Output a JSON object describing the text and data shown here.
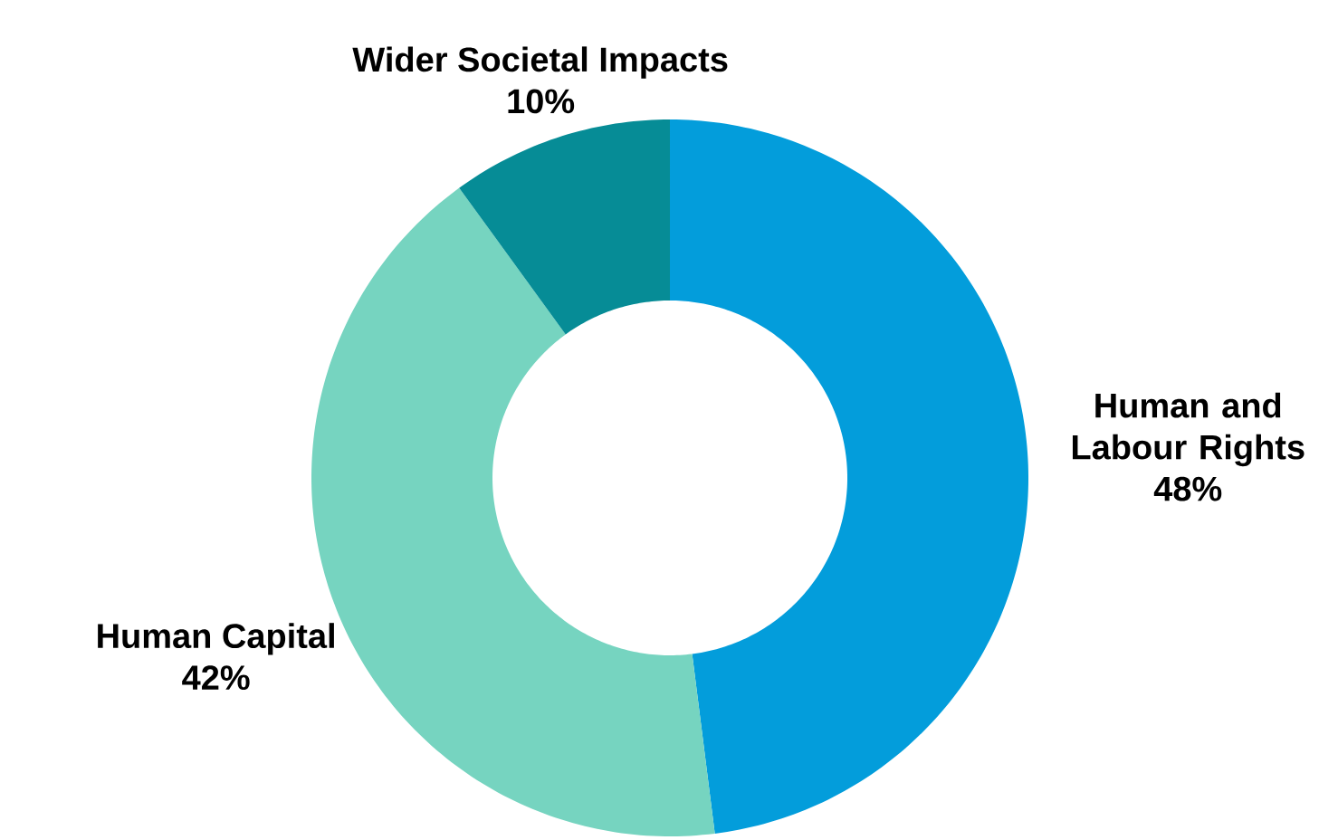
{
  "chart_data": {
    "type": "donut",
    "categories": [
      "Human and Labour Rights",
      "Human Capital",
      "Wider Societal Impacts"
    ],
    "values": [
      48,
      42,
      10
    ],
    "value_labels": [
      "48%",
      "42%",
      "10%"
    ],
    "colors": [
      "#039ddb",
      "#76d4c0",
      "#068c96"
    ]
  }
}
